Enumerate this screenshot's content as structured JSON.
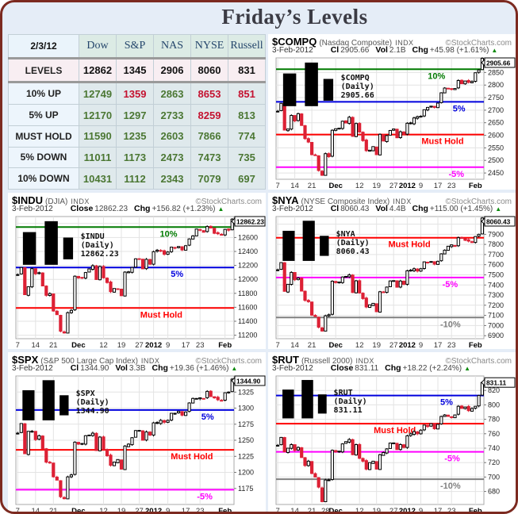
{
  "page": {
    "title": "Friday’s Levels"
  },
  "colors": {
    "page_background": "#e5edf7",
    "frame_border": "#7c2a20",
    "title_text": "#3b3b44",
    "up_level": "#007a00",
    "five_up_level": "#0000dd",
    "must_hold_level": "#ff0000",
    "five_down_level": "#ff00ff",
    "ten_down_level": "#808080",
    "candle_down": "#dd2135",
    "candle_up_fill": "#ffffff",
    "table_green": "#4b7733",
    "table_red": "#c41230"
  },
  "table": {
    "date": "2/3/12",
    "columns": [
      "Dow",
      "S&P",
      "NAS",
      "NYSE",
      "Russell"
    ],
    "rows": [
      {
        "label": "LEVELS",
        "values": [
          {
            "v": "12862",
            "c": "#111111"
          },
          {
            "v": "1345",
            "c": "#111111"
          },
          {
            "v": "2906",
            "c": "#111111"
          },
          {
            "v": "8060",
            "c": "#111111"
          },
          {
            "v": "831",
            "c": "#111111"
          }
        ]
      },
      {
        "label": "10% UP",
        "values": [
          {
            "v": "12749",
            "c": "#4b7733"
          },
          {
            "v": "1359",
            "c": "#c41230"
          },
          {
            "v": "2863",
            "c": "#4b7733"
          },
          {
            "v": "8653",
            "c": "#c41230"
          },
          {
            "v": "851",
            "c": "#c41230"
          }
        ]
      },
      {
        "label": "5% UP",
        "values": [
          {
            "v": "12170",
            "c": "#4b7733"
          },
          {
            "v": "1297",
            "c": "#4b7733"
          },
          {
            "v": "2733",
            "c": "#4b7733"
          },
          {
            "v": "8259",
            "c": "#c41230"
          },
          {
            "v": "813",
            "c": "#4b7733"
          }
        ]
      },
      {
        "label": "MUST HOLD",
        "values": [
          {
            "v": "11590",
            "c": "#4b7733"
          },
          {
            "v": "1235",
            "c": "#4b7733"
          },
          {
            "v": "2603",
            "c": "#4b7733"
          },
          {
            "v": "7866",
            "c": "#4b7733"
          },
          {
            "v": "774",
            "c": "#4b7733"
          }
        ]
      },
      {
        "label": "5% DOWN",
        "values": [
          {
            "v": "11011",
            "c": "#4b7733"
          },
          {
            "v": "1173",
            "c": "#4b7733"
          },
          {
            "v": "2473",
            "c": "#4b7733"
          },
          {
            "v": "7473",
            "c": "#4b7733"
          },
          {
            "v": "735",
            "c": "#4b7733"
          }
        ]
      },
      {
        "label": "10% DOWN",
        "values": [
          {
            "v": "10431",
            "c": "#4b7733"
          },
          {
            "v": "1112",
            "c": "#4b7733"
          },
          {
            "v": "2343",
            "c": "#4b7733"
          },
          {
            "v": "7079",
            "c": "#4b7733"
          },
          {
            "v": "697",
            "c": "#4b7733"
          }
        ]
      }
    ]
  },
  "chart_data": [
    {
      "type": "candlestick",
      "name": "$COMPQ",
      "desc": "(Nasdaq Composite)",
      "kind": "INDX",
      "source": "©StockCharts.com",
      "date": "3-Feb-2012",
      "quote": [
        {
          "k": "Cl",
          "v": "2905.66"
        },
        {
          "k": "Vol",
          "v": "2.1B"
        },
        {
          "k": "Chg",
          "v": "+45.98 (+1.61%)"
        }
      ],
      "overlay": "$COMPQ (Daily) 2905.66",
      "tag": "2905.66",
      "ylim": [
        2425,
        2908
      ],
      "yticks": [
        2850,
        2800,
        2750,
        2700,
        2650,
        2600,
        2550,
        2500,
        2450
      ],
      "xticks": [
        {
          "l": "7",
          "i": 0
        },
        {
          "l": "14",
          "i": 5
        },
        {
          "l": "21",
          "i": 10
        },
        {
          "l": "Dec",
          "i": 17,
          "b": 1
        },
        {
          "l": "12",
          "i": 24
        },
        {
          "l": "19",
          "i": 29
        },
        {
          "l": "27",
          "i": 34
        },
        {
          "l": "2012",
          "i": 38,
          "b": 1
        },
        {
          "l": "9",
          "i": 42
        },
        {
          "l": "17",
          "i": 47
        },
        {
          "l": "23",
          "i": 51
        },
        {
          "l": "Feb",
          "i": 58,
          "b": 1
        }
      ],
      "levels": [
        {
          "value": 2863,
          "label": "10%",
          "color": "#007a00",
          "lx": 0.73
        },
        {
          "value": 2733,
          "label": "5%",
          "color": "#0000dd",
          "lx": 0.85
        },
        {
          "value": 2603,
          "label": "Must Hold",
          "color": "#ff0000",
          "lx": 0.7
        },
        {
          "value": 2473,
          "label": "-5%",
          "color": "#ff00ff",
          "lx": 0.83
        }
      ],
      "closes": [
        2696,
        2727,
        2621,
        2625,
        2679,
        2657,
        2686,
        2639,
        2587,
        2573,
        2523,
        2521,
        2460,
        2441,
        2527,
        2515,
        2620,
        2626,
        2627,
        2656,
        2649,
        2672,
        2596,
        2647,
        2613,
        2579,
        2539,
        2541,
        2555,
        2523,
        2604,
        2577,
        2599,
        2619,
        2625,
        2590,
        2614,
        2605,
        2648,
        2648,
        2669,
        2674,
        2676,
        2702,
        2711,
        2716,
        2711,
        2728,
        2769,
        2788,
        2787,
        2784,
        2786,
        2818,
        2805,
        2816,
        2811,
        2814,
        2849,
        2860,
        2906
      ]
    },
    {
      "type": "candlestick",
      "name": "$INDU",
      "desc": "(DJIA)",
      "kind": "INDX",
      "source": "©StockCharts.com",
      "date": "3-Feb-2012",
      "quote": [
        {
          "k": "Close",
          "v": "12862.23"
        },
        {
          "k": "Chg",
          "v": "+156.82 (+1.23%)"
        }
      ],
      "overlay": "$INDU (Daily) 12862.23",
      "tag": "12862.23",
      "ylim": [
        11150,
        12900
      ],
      "yticks": [
        12800,
        12600,
        12400,
        12200,
        12000,
        11800,
        11600,
        11400,
        11200
      ],
      "xticks": [
        {
          "l": "7",
          "i": 0
        },
        {
          "l": "14",
          "i": 5
        },
        {
          "l": "21",
          "i": 10
        },
        {
          "l": "Dec",
          "i": 17,
          "b": 1
        },
        {
          "l": "12",
          "i": 24
        },
        {
          "l": "19",
          "i": 29
        },
        {
          "l": "27",
          "i": 34
        },
        {
          "l": "2012",
          "i": 38,
          "b": 1
        },
        {
          "l": "9",
          "i": 42
        },
        {
          "l": "17",
          "i": 47
        },
        {
          "l": "23",
          "i": 51
        },
        {
          "l": "Feb",
          "i": 58,
          "b": 1
        }
      ],
      "levels": [
        {
          "value": 12749,
          "label": "10%",
          "color": "#007a00",
          "lx": 0.66
        },
        {
          "value": 12170,
          "label": "5%",
          "color": "#0000dd",
          "lx": 0.71
        },
        {
          "value": 11590,
          "label": "Must Hold",
          "color": "#ff0000",
          "lx": 0.57
        }
      ],
      "closes": [
        12068,
        12170,
        11781,
        11894,
        12153,
        12079,
        12096,
        11906,
        11771,
        11796,
        11547,
        11494,
        11258,
        11232,
        11523,
        11556,
        12045,
        12020,
        12019,
        12098,
        12150,
        12196,
        11998,
        12184,
        12021,
        11955,
        11823,
        11869,
        11866,
        11766,
        12104,
        12108,
        12170,
        12294,
        12291,
        12151,
        12287,
        12218,
        12397,
        12418,
        12415,
        12360,
        12392,
        12462,
        12449,
        12471,
        12422,
        12482,
        12579,
        12623,
        12720,
        12708,
        12676,
        12757,
        12735,
        12660,
        12653,
        12633,
        12716,
        12705,
        12862
      ]
    },
    {
      "type": "candlestick",
      "name": "$NYA",
      "desc": "(NYSE Composite Index)",
      "kind": "INDX",
      "source": "©StockCharts.com",
      "date": "3-Feb-2012",
      "quote": [
        {
          "k": "Cl",
          "v": "8060.43"
        },
        {
          "k": "Vol",
          "v": "4.4B"
        },
        {
          "k": "Chg",
          "v": "+115.00 (+1.45%)"
        }
      ],
      "overlay": "$NYA (Daily) 8060.43",
      "tag": "8060.43",
      "ylim": [
        6870,
        8075
      ],
      "yticks": [
        8000,
        7900,
        7800,
        7700,
        7600,
        7500,
        7400,
        7300,
        7200,
        7100,
        7000,
        6900
      ],
      "xticks": [
        {
          "l": "7",
          "i": 0
        },
        {
          "l": "14",
          "i": 5
        },
        {
          "l": "21",
          "i": 10
        },
        {
          "l": "Dec",
          "i": 17,
          "b": 1
        },
        {
          "l": "12",
          "i": 24
        },
        {
          "l": "19",
          "i": 29
        },
        {
          "l": "27",
          "i": 34
        },
        {
          "l": "2012",
          "i": 38,
          "b": 1
        },
        {
          "l": "9",
          "i": 42
        },
        {
          "l": "17",
          "i": 47
        },
        {
          "l": "23",
          "i": 51
        },
        {
          "l": "Feb",
          "i": 58,
          "b": 1
        }
      ],
      "levels": [
        {
          "value": 7866,
          "label": "Must Hold",
          "color": "#ff0000",
          "lx": 0.54
        },
        {
          "value": 7473,
          "label": "-5%",
          "color": "#ff00ff",
          "lx": 0.8
        },
        {
          "value": 7079,
          "label": "-10%",
          "color": "#808080",
          "lx": 0.79
        }
      ],
      "closes": [
        7549,
        7621,
        7337,
        7407,
        7524,
        7451,
        7469,
        7340,
        7249,
        7235,
        7102,
        7088,
        6983,
        6946,
        7096,
        7106,
        7437,
        7423,
        7424,
        7479,
        7484,
        7499,
        7325,
        7441,
        7321,
        7266,
        7183,
        7204,
        7219,
        7136,
        7333,
        7332,
        7379,
        7440,
        7443,
        7378,
        7439,
        7407,
        7540,
        7546,
        7560,
        7537,
        7560,
        7628,
        7623,
        7631,
        7605,
        7634,
        7707,
        7743,
        7782,
        7796,
        7780,
        7866,
        7859,
        7841,
        7832,
        7818,
        7878,
        7900,
        8060
      ]
    },
    {
      "type": "candlestick",
      "name": "$SPX",
      "desc": "(S&P 500 Large Cap Index)",
      "kind": "INDX",
      "source": "©StockCharts.com",
      "date": "3-Feb-2012",
      "quote": [
        {
          "k": "Cl",
          "v": "1344.90"
        },
        {
          "k": "Vol",
          "v": "3.3B"
        },
        {
          "k": "Chg",
          "v": "+19.36 (+1.46%)"
        }
      ],
      "overlay": "$SPX (Daily) 1344.90",
      "tag": "1344.90",
      "ylim": [
        1150,
        1350
      ],
      "yticks": [
        1325,
        1300,
        1275,
        1250,
        1225,
        1200,
        1175
      ],
      "xticks": [
        {
          "l": "7",
          "i": 0
        },
        {
          "l": "14",
          "i": 5
        },
        {
          "l": "21",
          "i": 10
        },
        {
          "l": "Dec",
          "i": 17,
          "b": 1
        },
        {
          "l": "12",
          "i": 24
        },
        {
          "l": "19",
          "i": 29
        },
        {
          "l": "27",
          "i": 34
        },
        {
          "l": "2012",
          "i": 38,
          "b": 1
        },
        {
          "l": "9",
          "i": 42
        },
        {
          "l": "17",
          "i": 47
        },
        {
          "l": "23",
          "i": 51
        },
        {
          "l": "Feb",
          "i": 58,
          "b": 1
        }
      ],
      "levels": [
        {
          "value": 1297,
          "label": "5%",
          "color": "#0000dd",
          "lx": 0.85
        },
        {
          "value": 1235,
          "label": "Must Hold",
          "color": "#ff0000",
          "lx": 0.71
        },
        {
          "value": 1173,
          "label": "-5%",
          "color": "#ff00ff",
          "lx": 0.83
        }
      ],
      "closes": [
        1261,
        1276,
        1229,
        1264,
        1264,
        1251,
        1257,
        1237,
        1216,
        1215,
        1193,
        1188,
        1162,
        1159,
        1193,
        1196,
        1247,
        1244,
        1244,
        1257,
        1258,
        1261,
        1234,
        1255,
        1236,
        1226,
        1211,
        1216,
        1220,
        1205,
        1241,
        1244,
        1254,
        1265,
        1265,
        1250,
        1263,
        1258,
        1277,
        1277,
        1281,
        1278,
        1281,
        1292,
        1292,
        1295,
        1289,
        1294,
        1308,
        1315,
        1315,
        1316,
        1315,
        1326,
        1318,
        1316,
        1313,
        1312,
        1324,
        1325,
        1345
      ]
    },
    {
      "type": "candlestick",
      "name": "$RUT",
      "desc": "(Russell 2000)",
      "kind": "INDX",
      "source": "©StockCharts.com",
      "date": "3-Feb-2012",
      "quote": [
        {
          "k": "Close",
          "v": "831.11"
        },
        {
          "k": "Chg",
          "v": "+18.22 (+2.24%)"
        }
      ],
      "overlay": "$RUT (Daily) 831.11",
      "tag": "831.11",
      "ylim": [
        662,
        840
      ],
      "yticks": [
        820,
        800,
        780,
        760,
        740,
        720,
        700,
        680
      ],
      "xticks": [
        {
          "l": "7",
          "i": 0
        },
        {
          "l": "14",
          "i": 5
        },
        {
          "l": "21",
          "i": 10
        },
        {
          "l": "28",
          "i": 14
        },
        {
          "l": "Dec",
          "i": 17,
          "b": 1
        },
        {
          "l": "12",
          "i": 24
        },
        {
          "l": "19",
          "i": 29
        },
        {
          "l": "27",
          "i": 34
        },
        {
          "l": "2012",
          "i": 38,
          "b": 1
        },
        {
          "l": "9",
          "i": 42
        },
        {
          "l": "17",
          "i": 47
        },
        {
          "l": "23",
          "i": 51
        },
        {
          "l": "Feb",
          "i": 58,
          "b": 1
        }
      ],
      "levels": [
        {
          "value": 813,
          "label": "5%",
          "color": "#0000dd",
          "lx": 0.79
        },
        {
          "value": 774,
          "label": "Must Hold",
          "color": "#ff0000",
          "lx": 0.47
        },
        {
          "value": 735,
          "label": "-5%",
          "color": "#ff00ff",
          "lx": 0.81
        },
        {
          "value": 697,
          "label": "-10%",
          "color": "#808080",
          "lx": 0.79
        }
      ],
      "closes": [
        744,
        755,
        735,
        740,
        745,
        737,
        741,
        727,
        716,
        722,
        705,
        700,
        686,
        666,
        696,
        696,
        737,
        735,
        735,
        746,
        749,
        752,
        731,
        745,
        726,
        722,
        711,
        720,
        722,
        711,
        731,
        734,
        739,
        747,
        747,
        738,
        745,
        741,
        757,
        760,
        763,
        760,
        765,
        772,
        770,
        774,
        767,
        773,
        784,
        786,
        784,
        783,
        786,
        798,
        795,
        797,
        792,
        795,
        798,
        813,
        831
      ]
    }
  ]
}
